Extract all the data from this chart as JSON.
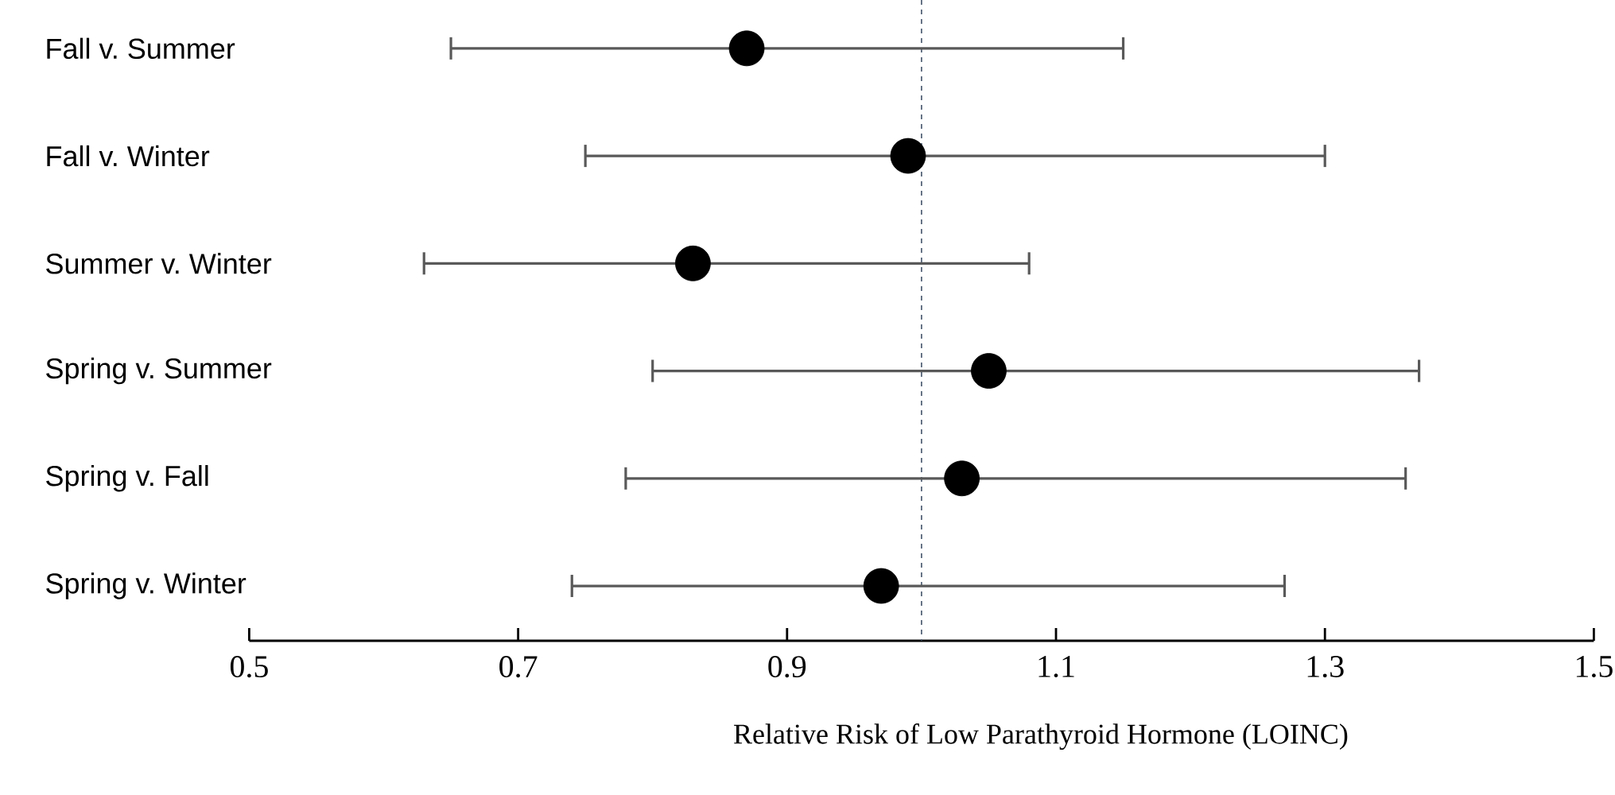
{
  "chart_data": {
    "type": "scatter",
    "orientation": "horizontal",
    "xlabel": "Relative Risk of Low Parathyroid Hormone (LOINC)",
    "categories": [
      "Fall v. Summer",
      "Fall v. Winter",
      "Summer v. Winter",
      "Spring v. Summer",
      "Spring v. Fall",
      "Spring v. Winter"
    ],
    "values": [
      0.87,
      0.99,
      0.83,
      1.05,
      1.03,
      0.97
    ],
    "errors": [
      [
        0.65,
        1.15
      ],
      [
        0.75,
        1.3
      ],
      [
        0.63,
        1.08
      ],
      [
        0.8,
        1.37
      ],
      [
        0.78,
        1.36
      ],
      [
        0.74,
        1.27
      ]
    ],
    "color": "#000000",
    "xlim": [
      0.5,
      1.5
    ],
    "xticks": [
      0.5,
      0.7,
      0.9,
      1.1,
      1.3,
      1.5
    ],
    "ref_lines": [
      {
        "axis": "x",
        "value": 1.0,
        "color": "#44546a",
        "line_style": "dashed"
      }
    ]
  }
}
